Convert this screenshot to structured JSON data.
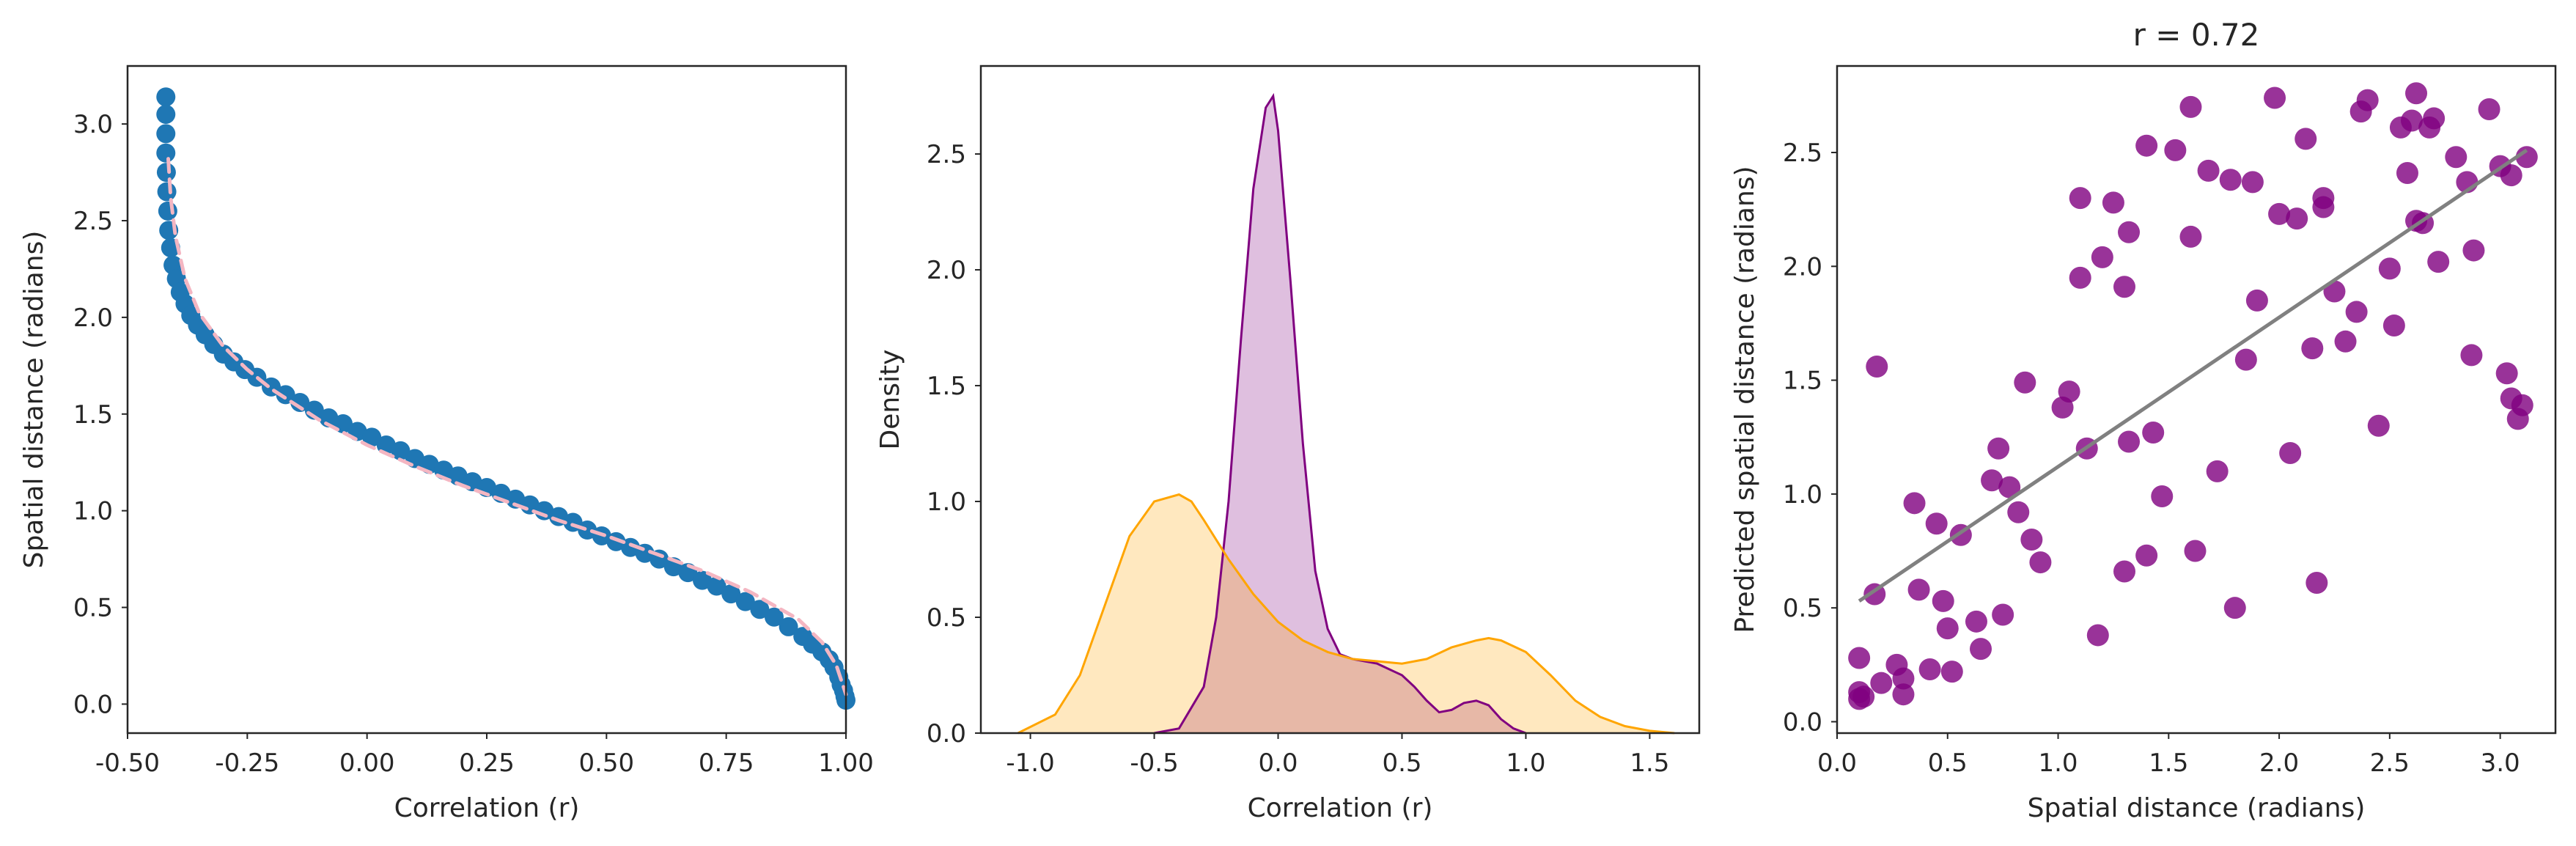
{
  "colors": {
    "blue": "#1f77b4",
    "pink_dashed": "#f4b6c2",
    "purple": "#800080",
    "orange": "#ffa500",
    "gray_line": "#808080",
    "axis": "#262626"
  },
  "chart_data": [
    {
      "type": "scatter",
      "title": "",
      "xlabel": "Correlation (r)",
      "ylabel": "Spatial distance (radians)",
      "xlim": [
        -0.5,
        1.0
      ],
      "ylim": [
        -0.15,
        3.3
      ],
      "xticks": [
        "-0.50",
        "-0.25",
        "0.00",
        "0.25",
        "0.50",
        "0.75",
        "1.00"
      ],
      "xtick_values": [
        -0.5,
        -0.25,
        0.0,
        0.25,
        0.5,
        0.75,
        1.0
      ],
      "yticks": [
        "0.0",
        "0.5",
        "1.0",
        "1.5",
        "2.0",
        "2.5",
        "3.0"
      ],
      "ytick_values": [
        0.0,
        0.5,
        1.0,
        1.5,
        2.0,
        2.5,
        3.0
      ],
      "grid": false,
      "series": [
        {
          "kind": "points",
          "color": "#1f77b4",
          "x": [
            -0.42,
            -0.42,
            -0.42,
            -0.42,
            -0.419,
            -0.418,
            -0.416,
            -0.414,
            -0.41,
            -0.405,
            -0.398,
            -0.39,
            -0.38,
            -0.368,
            -0.354,
            -0.338,
            -0.32,
            -0.3,
            -0.278,
            -0.255,
            -0.23,
            -0.2,
            -0.17,
            -0.14,
            -0.11,
            -0.08,
            -0.05,
            -0.02,
            0.01,
            0.04,
            0.07,
            0.1,
            0.13,
            0.16,
            0.19,
            0.22,
            0.25,
            0.28,
            0.31,
            0.34,
            0.37,
            0.4,
            0.43,
            0.46,
            0.49,
            0.52,
            0.55,
            0.58,
            0.61,
            0.64,
            0.67,
            0.7,
            0.73,
            0.76,
            0.79,
            0.82,
            0.85,
            0.88,
            0.91,
            0.93,
            0.95,
            0.965,
            0.975,
            0.985,
            0.99,
            0.995,
            0.998,
            1.0
          ],
          "y": [
            3.14,
            3.05,
            2.95,
            2.85,
            2.75,
            2.65,
            2.55,
            2.45,
            2.36,
            2.27,
            2.2,
            2.13,
            2.07,
            2.01,
            1.96,
            1.91,
            1.86,
            1.81,
            1.77,
            1.73,
            1.69,
            1.64,
            1.6,
            1.56,
            1.52,
            1.48,
            1.45,
            1.41,
            1.38,
            1.34,
            1.31,
            1.27,
            1.24,
            1.21,
            1.18,
            1.15,
            1.12,
            1.09,
            1.06,
            1.03,
            1.0,
            0.97,
            0.94,
            0.9,
            0.87,
            0.84,
            0.81,
            0.78,
            0.75,
            0.71,
            0.68,
            0.64,
            0.61,
            0.57,
            0.53,
            0.49,
            0.45,
            0.4,
            0.35,
            0.31,
            0.27,
            0.23,
            0.19,
            0.14,
            0.1,
            0.07,
            0.04,
            0.02
          ]
        },
        {
          "kind": "dashed-line",
          "color": "#f4b6c2",
          "x": [
            -0.415,
            -0.41,
            -0.4,
            -0.38,
            -0.35,
            -0.3,
            -0.25,
            -0.2,
            -0.1,
            0.0,
            0.1,
            0.2,
            0.3,
            0.4,
            0.5,
            0.6,
            0.7,
            0.8,
            0.9,
            0.95,
            0.98,
            1.0
          ],
          "y": [
            2.82,
            2.62,
            2.42,
            2.2,
            2.02,
            1.85,
            1.73,
            1.63,
            1.47,
            1.34,
            1.23,
            1.13,
            1.04,
            0.95,
            0.87,
            0.78,
            0.69,
            0.58,
            0.44,
            0.32,
            0.2,
            0.05
          ]
        }
      ]
    },
    {
      "type": "area",
      "title": "",
      "xlabel": "Correlation (r)",
      "ylabel": "Density",
      "xlim": [
        -1.2,
        1.7
      ],
      "ylim": [
        0.0,
        2.88
      ],
      "xticks": [
        "-1.0",
        "-0.5",
        "0.0",
        "0.5",
        "1.0",
        "1.5"
      ],
      "xtick_values": [
        -1.0,
        -0.5,
        0.0,
        0.5,
        1.0,
        1.5
      ],
      "yticks": [
        "0.0",
        "0.5",
        "1.0",
        "1.5",
        "2.0",
        "2.5"
      ],
      "ytick_values": [
        0.0,
        0.5,
        1.0,
        1.5,
        2.0,
        2.5
      ],
      "grid": false,
      "series": [
        {
          "kind": "kde",
          "color": "#800080",
          "x": [
            -0.5,
            -0.4,
            -0.3,
            -0.25,
            -0.2,
            -0.15,
            -0.1,
            -0.05,
            -0.02,
            0.0,
            0.05,
            0.1,
            0.15,
            0.2,
            0.25,
            0.3,
            0.4,
            0.5,
            0.55,
            0.6,
            0.65,
            0.7,
            0.75,
            0.8,
            0.85,
            0.9,
            0.95,
            1.0
          ],
          "y": [
            0.0,
            0.02,
            0.2,
            0.5,
            1.0,
            1.7,
            2.35,
            2.7,
            2.75,
            2.6,
            1.95,
            1.25,
            0.7,
            0.45,
            0.34,
            0.32,
            0.3,
            0.25,
            0.2,
            0.14,
            0.09,
            0.1,
            0.13,
            0.14,
            0.12,
            0.06,
            0.02,
            0.0
          ]
        },
        {
          "kind": "kde",
          "color": "#ffa500",
          "x": [
            -1.05,
            -0.9,
            -0.8,
            -0.7,
            -0.6,
            -0.5,
            -0.4,
            -0.35,
            -0.3,
            -0.2,
            -0.1,
            0.0,
            0.1,
            0.2,
            0.3,
            0.4,
            0.5,
            0.6,
            0.7,
            0.8,
            0.85,
            0.9,
            1.0,
            1.1,
            1.2,
            1.3,
            1.4,
            1.5,
            1.6
          ],
          "y": [
            0.0,
            0.08,
            0.25,
            0.55,
            0.85,
            1.0,
            1.03,
            1.0,
            0.92,
            0.75,
            0.6,
            0.48,
            0.4,
            0.35,
            0.32,
            0.31,
            0.3,
            0.32,
            0.37,
            0.4,
            0.41,
            0.4,
            0.35,
            0.25,
            0.14,
            0.07,
            0.03,
            0.01,
            0.0
          ]
        }
      ]
    },
    {
      "type": "scatter",
      "title": "r = 0.72",
      "xlabel": "Spatial distance (radians)",
      "ylabel": "Predicted spatial distance (radians)",
      "xlim": [
        0.0,
        3.25
      ],
      "ylim": [
        -0.05,
        2.88
      ],
      "xticks": [
        "0.0",
        "0.5",
        "1.0",
        "1.5",
        "2.0",
        "2.5",
        "3.0"
      ],
      "xtick_values": [
        0.0,
        0.5,
        1.0,
        1.5,
        2.0,
        2.5,
        3.0
      ],
      "yticks": [
        "0.0",
        "0.5",
        "1.0",
        "1.5",
        "2.0",
        "2.5"
      ],
      "ytick_values": [
        0.0,
        0.5,
        1.0,
        1.5,
        2.0,
        2.5
      ],
      "grid": false,
      "fit_line": {
        "x": [
          0.1,
          3.12
        ],
        "y": [
          0.53,
          2.51
        ],
        "color": "#808080"
      },
      "series": [
        {
          "kind": "points",
          "color": "#800080",
          "x": [
            0.1,
            0.1,
            0.12,
            0.1,
            0.17,
            0.2,
            0.27,
            0.3,
            0.3,
            0.35,
            0.37,
            0.42,
            0.45,
            0.48,
            0.5,
            0.52,
            0.56,
            0.63,
            0.65,
            0.7,
            0.75,
            0.78,
            0.82,
            0.85,
            0.88,
            0.92,
            1.02,
            1.05,
            1.1,
            1.1,
            1.13,
            1.2,
            1.25,
            1.3,
            1.3,
            1.32,
            1.32,
            1.4,
            1.4,
            1.43,
            1.47,
            1.53,
            1.6,
            1.6,
            1.62,
            1.68,
            1.72,
            1.78,
            1.8,
            1.85,
            1.88,
            1.9,
            1.98,
            2.0,
            2.05,
            2.08,
            2.12,
            2.15,
            2.17,
            2.2,
            2.25,
            2.3,
            2.35,
            2.37,
            2.4,
            2.45,
            2.5,
            2.52,
            2.55,
            2.58,
            2.6,
            2.62,
            2.65,
            2.68,
            2.7,
            2.72,
            2.8,
            2.85,
            2.87,
            2.88,
            2.95,
            3.0,
            3.03,
            3.05,
            3.05,
            3.08,
            3.1,
            3.12,
            0.18,
            0.73,
            1.18,
            2.2,
            2.62
          ],
          "y": [
            0.28,
            0.13,
            0.11,
            0.1,
            0.56,
            0.17,
            0.25,
            0.19,
            0.12,
            0.96,
            0.58,
            0.23,
            0.87,
            0.53,
            0.41,
            0.22,
            0.82,
            0.44,
            0.32,
            1.06,
            0.47,
            1.03,
            0.92,
            1.49,
            0.8,
            0.7,
            1.38,
            1.45,
            2.3,
            1.95,
            1.2,
            2.04,
            2.28,
            1.91,
            0.66,
            2.15,
            1.23,
            2.53,
            0.73,
            1.27,
            0.99,
            2.51,
            2.7,
            2.13,
            0.75,
            2.42,
            1.1,
            2.38,
            0.5,
            1.59,
            2.37,
            1.85,
            2.74,
            2.23,
            1.18,
            2.21,
            2.56,
            1.64,
            0.61,
            2.26,
            1.89,
            1.67,
            1.8,
            2.68,
            2.73,
            1.3,
            1.99,
            1.74,
            2.61,
            2.41,
            2.64,
            2.76,
            2.19,
            2.61,
            2.65,
            2.02,
            2.48,
            2.37,
            1.61,
            2.07,
            2.69,
            2.44,
            1.53,
            1.42,
            2.4,
            1.33,
            1.39,
            2.48,
            1.56,
            1.2,
            0.38,
            2.3,
            2.2
          ]
        }
      ]
    }
  ]
}
